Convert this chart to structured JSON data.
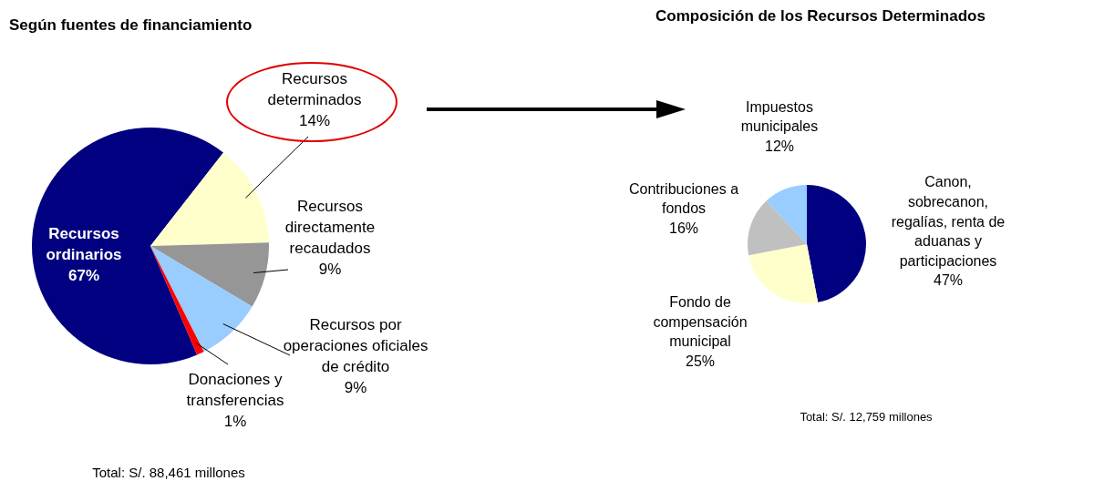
{
  "chart_data": [
    {
      "type": "pie",
      "title": "Según fuentes de financiamiento",
      "categories": [
        "Recursos ordinarios",
        "Recursos determinados",
        "Recursos directamente recaudados",
        "Recursos por operaciones oficiales de crédito",
        "Donaciones y transferencias"
      ],
      "values": [
        67,
        14,
        9,
        9,
        1
      ],
      "value_labels": [
        "67%",
        "14%",
        "9%",
        "9%",
        "1%"
      ],
      "colors": [
        "#000080",
        "#ffffcc",
        "#969696",
        "#99ccff",
        "#ff0000"
      ],
      "annotations": [
        "Total: S/. 88,461 millones"
      ]
    },
    {
      "type": "pie",
      "title": "Composición de los Recursos Determinados",
      "categories": [
        "Canon, sobrecanon, regalías, renta de aduanas y participaciones",
        "Fondo de compensación municipal",
        "Contribuciones a fondos",
        "Impuestos municipales"
      ],
      "values": [
        47,
        25,
        16,
        12
      ],
      "value_labels": [
        "47%",
        "25%",
        "16%",
        "12%"
      ],
      "colors": [
        "#000080",
        "#ffffcc",
        "#c0c0c0",
        "#99ccff"
      ],
      "annotations": [
        "Total: S/. 12,759 millones"
      ]
    }
  ]
}
